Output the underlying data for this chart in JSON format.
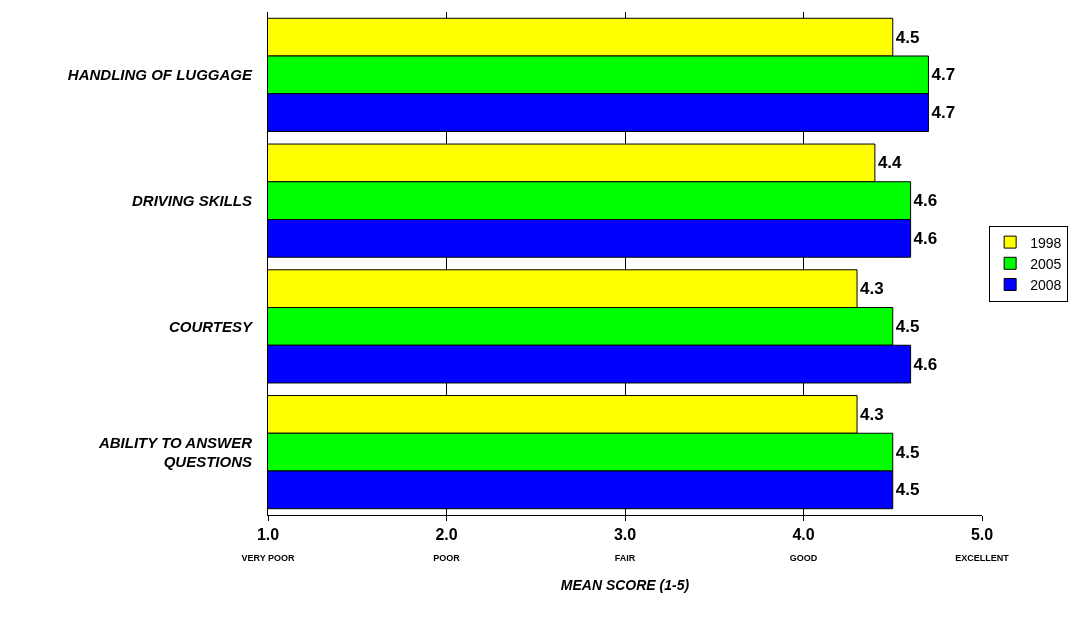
{
  "chart_data": {
    "type": "bar",
    "orientation": "horizontal",
    "xlabel": "MEAN SCORE (1-5)",
    "categories": [
      "HANDLING OF LUGGAGE",
      "DRIVING SKILLS",
      "COURTESY",
      "ABILITY TO ANSWER QUESTIONS"
    ],
    "series": [
      {
        "name": "1998",
        "color": "#ffff00",
        "values": [
          4.5,
          4.4,
          4.3,
          4.3
        ]
      },
      {
        "name": "2005",
        "color": "#00ff00",
        "values": [
          4.7,
          4.6,
          4.5,
          4.5
        ]
      },
      {
        "name": "2008",
        "color": "#0000ff",
        "values": [
          4.7,
          4.6,
          4.6,
          4.5
        ]
      }
    ],
    "xlim": [
      1,
      5
    ],
    "xticks": [
      {
        "value": 1,
        "label": "1.0\nVERY POOR"
      },
      {
        "value": 2,
        "label": "2.0\nPOOR"
      },
      {
        "value": 3,
        "label": "3.0\nFAIR"
      },
      {
        "value": 4,
        "label": "4.0\nGOOD"
      },
      {
        "value": 5,
        "label": "5.0\nEXCELLENT"
      }
    ],
    "grid": "x",
    "legend": "right",
    "data_labels": true
  }
}
